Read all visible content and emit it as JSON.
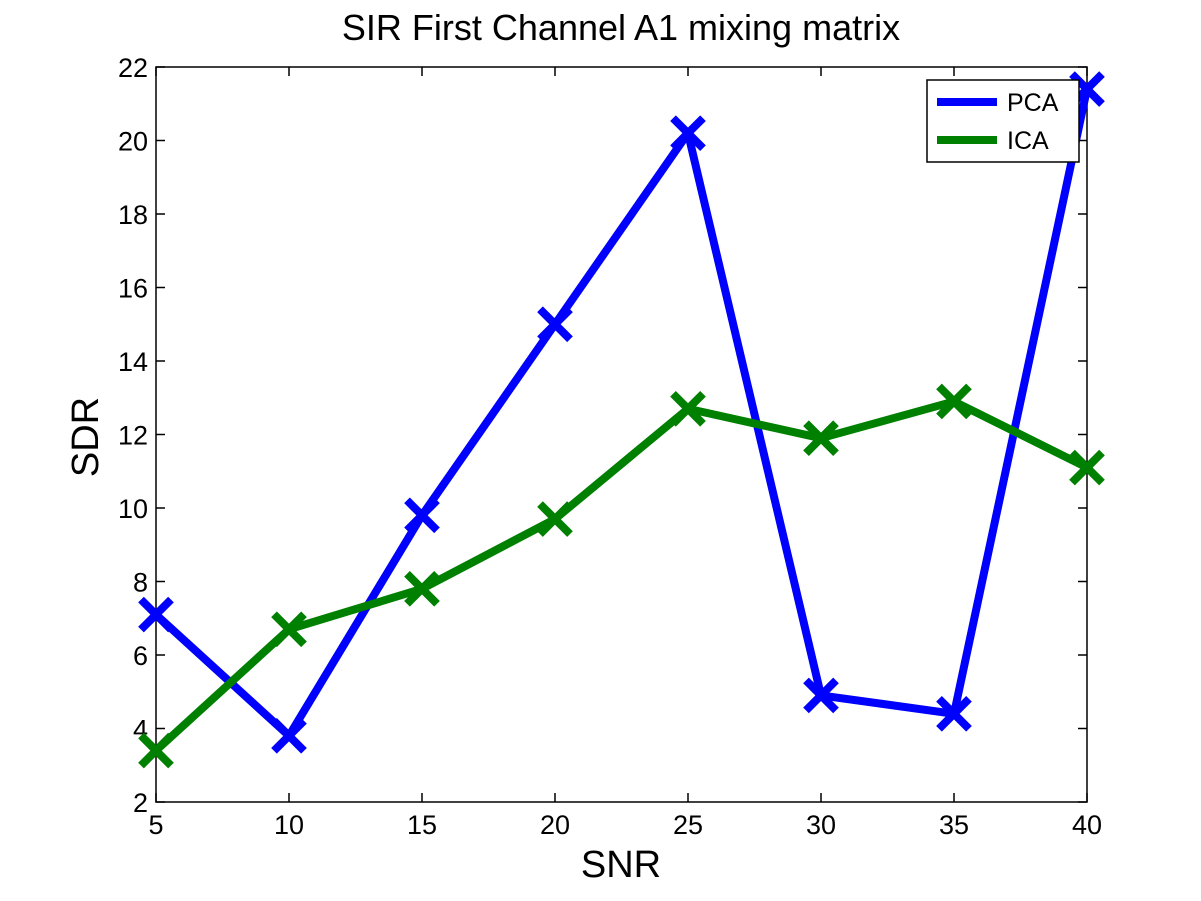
{
  "chart_data": {
    "type": "line",
    "title": "SIR First Channel A1 mixing matrix",
    "xlabel": "SNR",
    "ylabel": "SDR",
    "x": [
      5,
      10,
      15,
      20,
      25,
      30,
      35,
      40
    ],
    "xlim": [
      5,
      40
    ],
    "ylim": [
      2,
      22
    ],
    "xticks": [
      5,
      10,
      15,
      20,
      25,
      30,
      35,
      40
    ],
    "yticks": [
      2,
      4,
      6,
      8,
      10,
      12,
      14,
      16,
      18,
      20,
      22
    ],
    "grid": false,
    "legend_position": "top-right",
    "marker": "x",
    "series": [
      {
        "name": "PCA",
        "color": "#0000ff",
        "values": [
          7.1,
          3.8,
          9.8,
          15.0,
          20.2,
          4.9,
          4.4,
          21.4
        ]
      },
      {
        "name": "ICA",
        "color": "#008000",
        "values": [
          3.4,
          6.7,
          7.8,
          9.7,
          12.7,
          11.9,
          12.9,
          11.1
        ]
      }
    ]
  }
}
